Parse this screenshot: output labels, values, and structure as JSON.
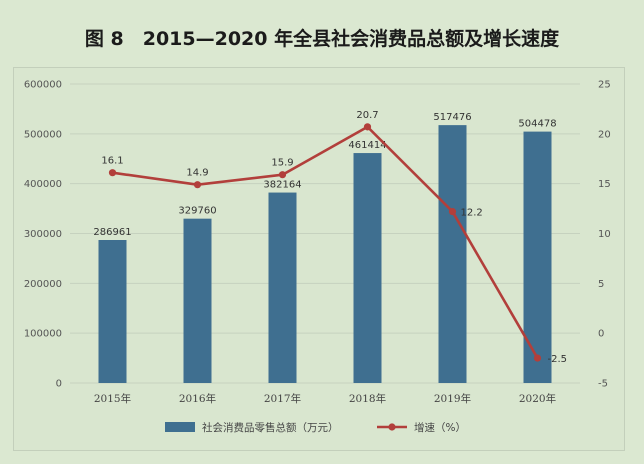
{
  "header": {
    "title": "图 8　2015—2020 年全县社会消费品总额及增长速度"
  },
  "chart_data": {
    "type": "bar",
    "categories": [
      "2015年",
      "2016年",
      "2017年",
      "2018年",
      "2019年",
      "2020年"
    ],
    "series": [
      {
        "name": "社会消费品零售总额（万元）",
        "type": "bar",
        "axis": "left",
        "values": [
          286961,
          329760,
          382164,
          461414,
          517476,
          504478
        ],
        "labels": [
          "286961",
          "329760",
          "382164",
          "461414",
          "517476",
          "504478"
        ],
        "color": "#3f6f90"
      },
      {
        "name": "增速（%）",
        "type": "line",
        "axis": "right",
        "values": [
          16.1,
          14.9,
          15.9,
          20.7,
          12.2,
          -2.5
        ],
        "labels": [
          "16.1",
          "14.9",
          "15.9",
          "20.7",
          "12.2",
          "-2.5"
        ],
        "color": "#b23f3b"
      }
    ],
    "y_left": {
      "range": [
        0,
        600000
      ],
      "ticks": [
        "0",
        "100000",
        "200000",
        "300000",
        "400000",
        "500000",
        "600000"
      ]
    },
    "y_right": {
      "range": [
        -5,
        25
      ],
      "ticks": [
        "-5",
        "0",
        "5",
        "10",
        "15",
        "20",
        "25"
      ]
    },
    "grid": true,
    "legend_position": "bottom"
  }
}
